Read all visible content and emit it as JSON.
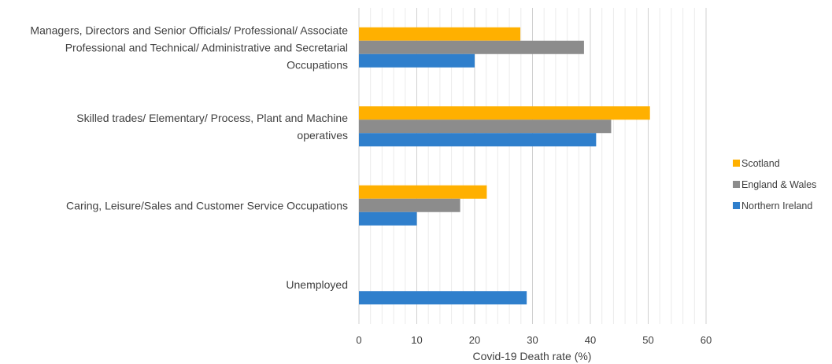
{
  "chart_data": {
    "type": "bar",
    "orientation": "horizontal",
    "categories": [
      "Managers, Directors and Senior Officials/ Professional/ Associate Professional and Technical/ Administrative and Secretarial Occupations",
      "Skilled trades/ Elementary/ Process, Plant and Machine operatives",
      "Caring, Leisure/Sales and Customer Service Occupations",
      "Unemployed"
    ],
    "category_lines": [
      [
        "Managers, Directors and Senior Officials/ Professional/ Associate",
        "Professional and Technical/ Administrative and Secretarial",
        "Occupations"
      ],
      [
        "Skilled trades/ Elementary/ Process, Plant and Machine",
        "operatives"
      ],
      [
        "Caring, Leisure/Sales and Customer Service Occupations"
      ],
      [
        "Unemployed"
      ]
    ],
    "series": [
      {
        "name": "Scotland",
        "color": "#FFB000",
        "values": [
          27.9,
          50.3,
          22.1,
          null
        ]
      },
      {
        "name": "England & Wales",
        "color": "#8C8C8C",
        "values": [
          38.9,
          43.6,
          17.5,
          null
        ]
      },
      {
        "name": "Northern Ireland",
        "color": "#2F7FCC",
        "values": [
          20.0,
          41.0,
          10.0,
          29.0
        ]
      }
    ],
    "xlabel": "Covid-19 Death rate (%)",
    "ylabel": "",
    "xlim": [
      0,
      60
    ],
    "xticks": [
      0,
      10,
      20,
      30,
      40,
      50,
      60
    ],
    "grid": true,
    "legend_position": "right"
  }
}
